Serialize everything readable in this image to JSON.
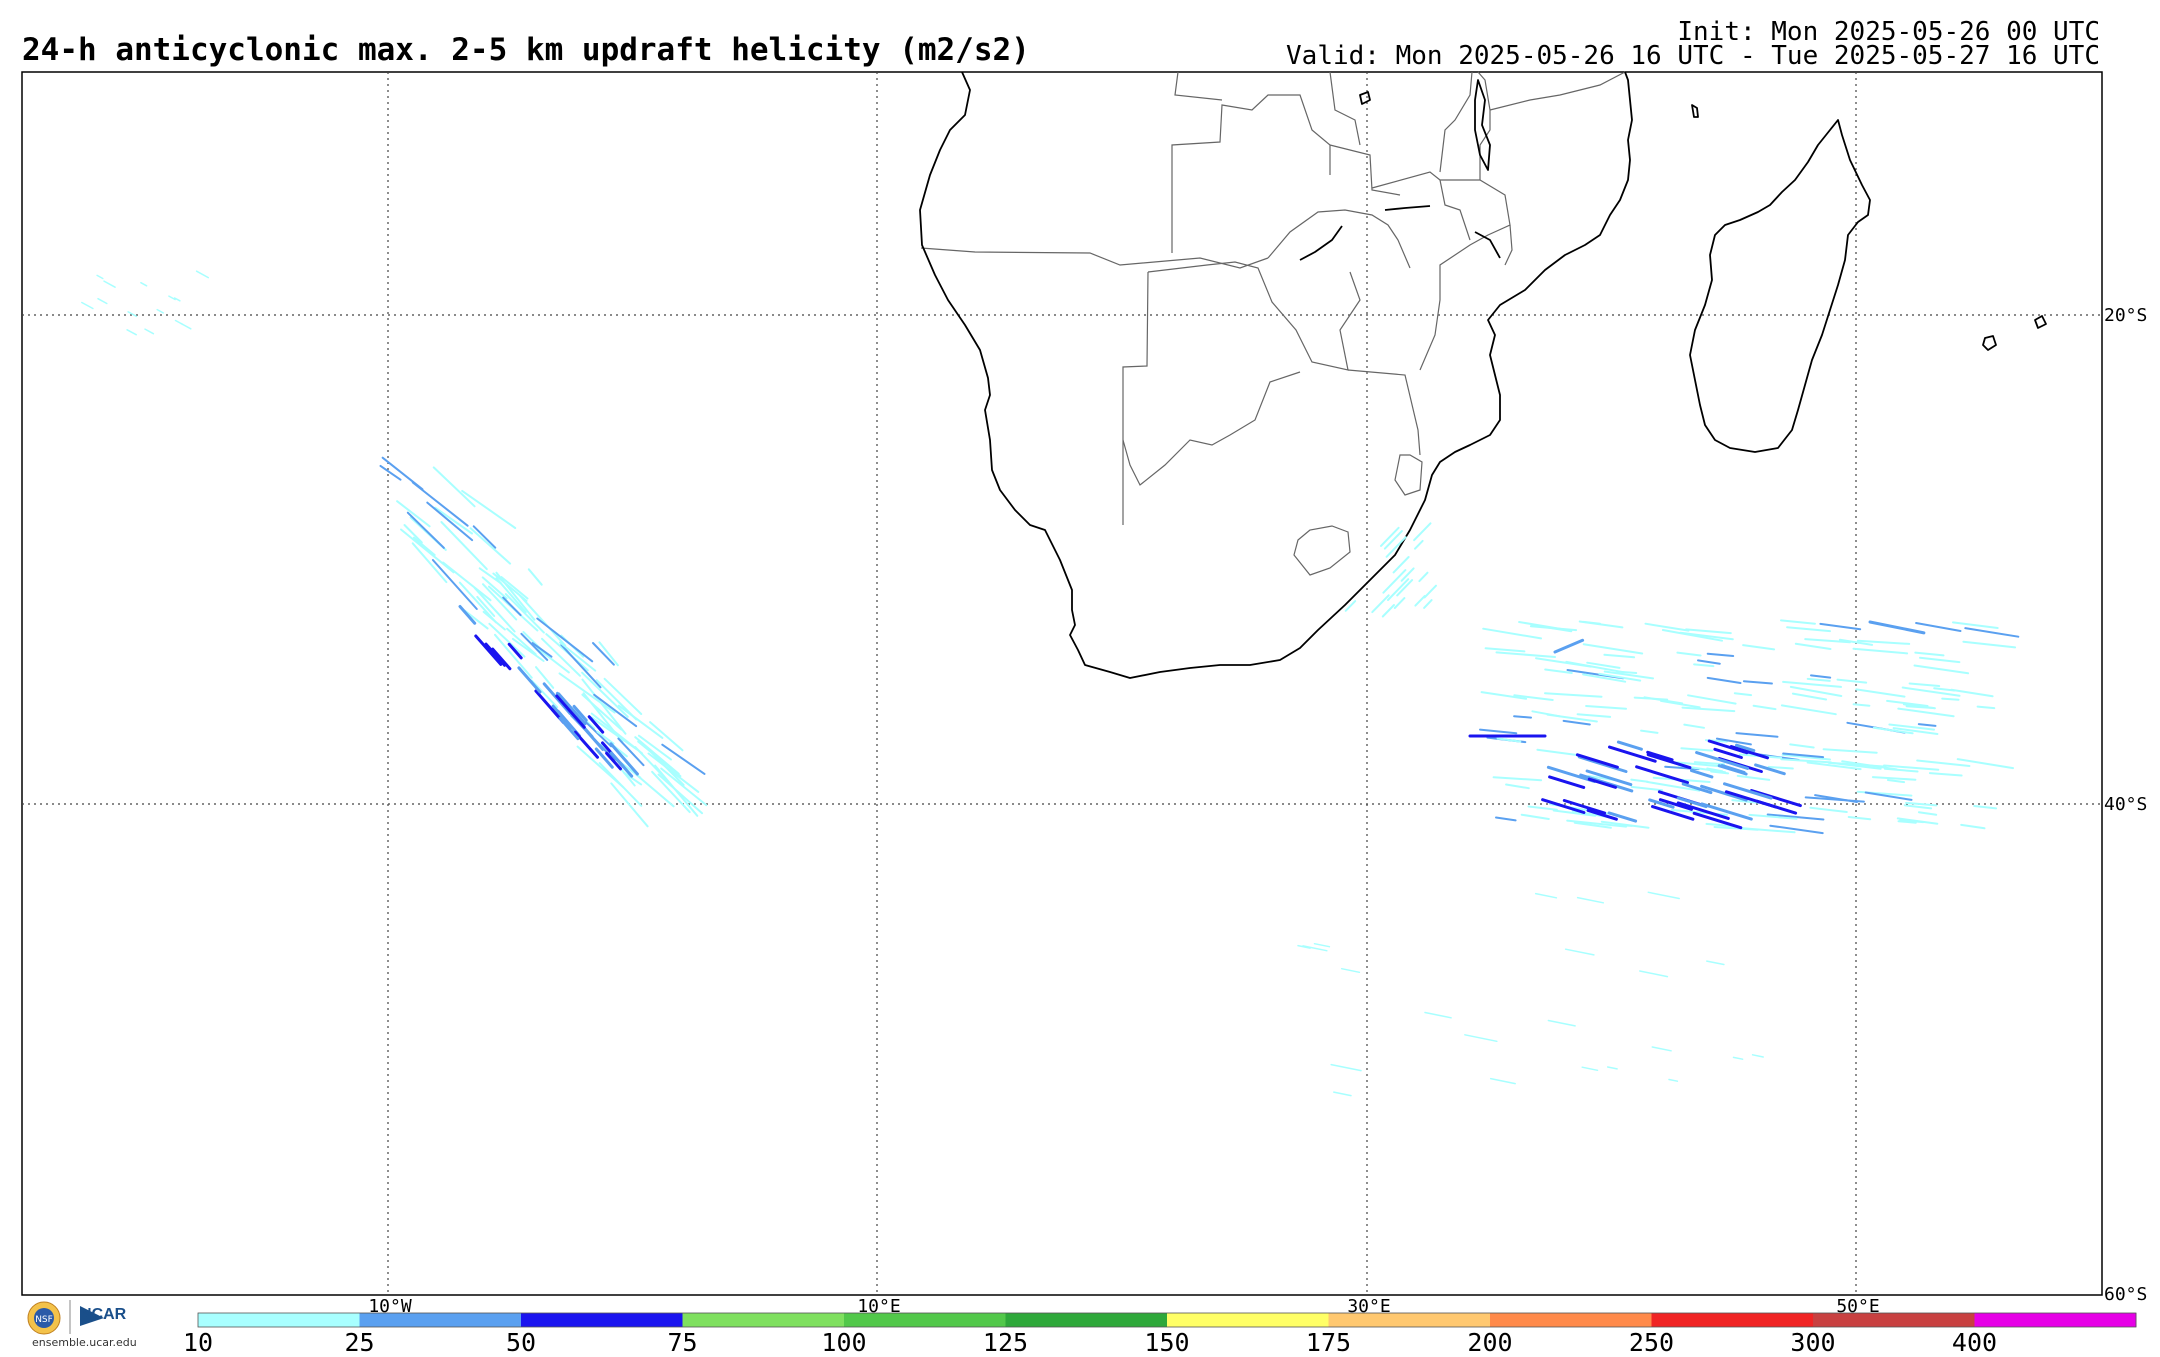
{
  "header": {
    "title": "24-h anticyclonic max. 2-5 km updraft helicity (m2/s2)",
    "init": "Init: Mon 2025-05-26 00 UTC",
    "valid": "Valid: Mon 2025-05-26 16 UTC - Tue 2025-05-27 16 UTC"
  },
  "map": {
    "lat_labels": [
      "20°S",
      "40°S",
      "60°S"
    ],
    "lon_labels": [
      "10°W",
      "10°E",
      "30°E",
      "50°E"
    ],
    "colors": {
      "coast": "#000000",
      "border": "#555555",
      "grid": "#444444"
    }
  },
  "colorbar": {
    "ticks": [
      "10",
      "25",
      "50",
      "75",
      "100",
      "125",
      "150",
      "175",
      "200",
      "250",
      "300",
      "400"
    ],
    "colors": [
      "#a8ffff",
      "#5aa0f0",
      "#1a14ef",
      "#7fe05f",
      "#52c84a",
      "#2ea83a",
      "#ffff66",
      "#ffc870",
      "#ff8a4a",
      "#f02424",
      "#c84040",
      "#e600e6"
    ]
  },
  "logo": {
    "nsf_label": "NSF",
    "ncar_label": "NCAR",
    "url": "ensemble.ucar.edu"
  }
}
